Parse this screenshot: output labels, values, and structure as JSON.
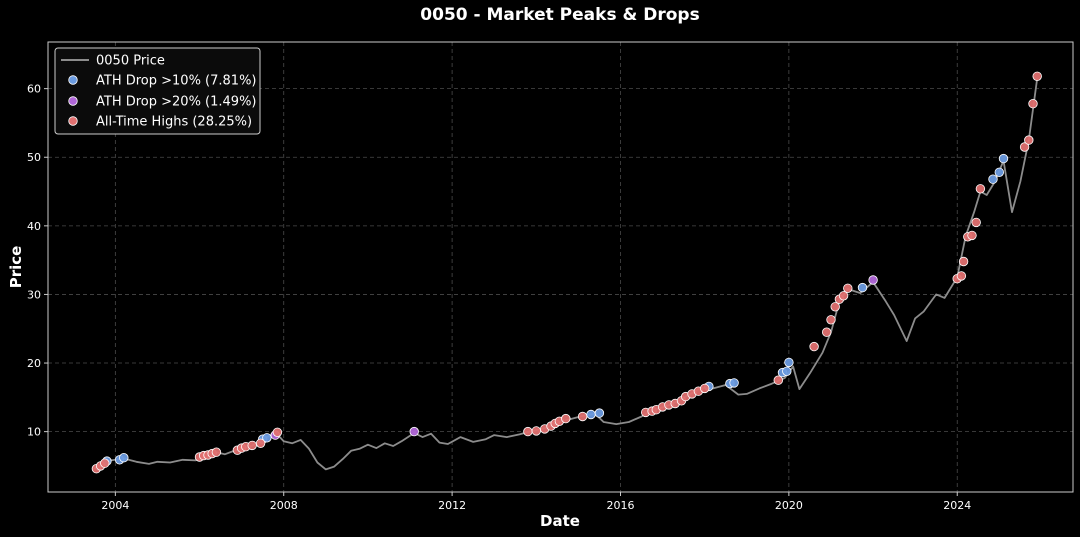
{
  "chart_data": {
    "type": "line",
    "title": "0050 - Market Peaks & Drops",
    "xlabel": "Date",
    "ylabel": "Price",
    "xlim": [
      2002.4,
      2026.75
    ],
    "ylim": [
      1.2,
      66.8
    ],
    "x_ticks": [
      2004,
      2008,
      2012,
      2016,
      2020,
      2024
    ],
    "x_tick_labels": [
      "2004",
      "2008",
      "2012",
      "2016",
      "2020",
      "2024"
    ],
    "y_ticks": [
      10,
      20,
      30,
      40,
      50,
      60
    ],
    "y_tick_labels": [
      "10",
      "20",
      "30",
      "40",
      "50",
      "60"
    ],
    "grid": true,
    "legend_position": "top-left",
    "colors": {
      "background": "#000000",
      "price_line": "#8c8c8c",
      "drop10": "#6b9be0",
      "drop20": "#b066d8",
      "ath": "#e07070",
      "marker_edge": "#ffffff",
      "grid": "#4a4a4a",
      "axes": "#cccccc"
    },
    "series": [
      {
        "name": "0050 Price",
        "kind": "line",
        "points": [
          [
            2003.5,
            4.6
          ],
          [
            2003.7,
            5.2
          ],
          [
            2003.9,
            5.8
          ],
          [
            2004.2,
            6.1
          ],
          [
            2004.5,
            5.6
          ],
          [
            2004.8,
            5.3
          ],
          [
            2005.0,
            5.6
          ],
          [
            2005.3,
            5.5
          ],
          [
            2005.6,
            5.9
          ],
          [
            2005.9,
            5.8
          ],
          [
            2006.1,
            6.3
          ],
          [
            2006.4,
            7.0
          ],
          [
            2006.6,
            6.7
          ],
          [
            2006.9,
            7.4
          ],
          [
            2007.2,
            7.8
          ],
          [
            2007.5,
            8.8
          ],
          [
            2007.8,
            9.9
          ],
          [
            2008.0,
            8.6
          ],
          [
            2008.2,
            8.3
          ],
          [
            2008.4,
            8.8
          ],
          [
            2008.6,
            7.5
          ],
          [
            2008.8,
            5.5
          ],
          [
            2009.0,
            4.5
          ],
          [
            2009.2,
            4.9
          ],
          [
            2009.4,
            6.0
          ],
          [
            2009.6,
            7.2
          ],
          [
            2009.8,
            7.5
          ],
          [
            2010.0,
            8.1
          ],
          [
            2010.2,
            7.6
          ],
          [
            2010.4,
            8.3
          ],
          [
            2010.6,
            7.9
          ],
          [
            2010.8,
            8.6
          ],
          [
            2011.1,
            9.8
          ],
          [
            2011.3,
            9.2
          ],
          [
            2011.5,
            9.7
          ],
          [
            2011.7,
            8.4
          ],
          [
            2011.9,
            8.2
          ],
          [
            2012.2,
            9.2
          ],
          [
            2012.5,
            8.5
          ],
          [
            2012.8,
            8.9
          ],
          [
            2013.0,
            9.5
          ],
          [
            2013.3,
            9.2
          ],
          [
            2013.6,
            9.6
          ],
          [
            2013.9,
            10.1
          ],
          [
            2014.2,
            10.5
          ],
          [
            2014.5,
            11.3
          ],
          [
            2014.8,
            11.8
          ],
          [
            2015.1,
            12.3
          ],
          [
            2015.4,
            12.6
          ],
          [
            2015.6,
            11.4
          ],
          [
            2015.9,
            11.1
          ],
          [
            2016.2,
            11.4
          ],
          [
            2016.5,
            12.2
          ],
          [
            2016.8,
            13.2
          ],
          [
            2017.1,
            13.7
          ],
          [
            2017.4,
            14.6
          ],
          [
            2017.7,
            15.6
          ],
          [
            2017.9,
            16.4
          ],
          [
            2018.2,
            16.3
          ],
          [
            2018.5,
            16.8
          ],
          [
            2018.8,
            15.4
          ],
          [
            2019.0,
            15.5
          ],
          [
            2019.3,
            16.3
          ],
          [
            2019.6,
            17.0
          ],
          [
            2019.9,
            17.8
          ],
          [
            2020.1,
            19.5
          ],
          [
            2020.25,
            16.2
          ],
          [
            2020.5,
            18.5
          ],
          [
            2020.8,
            21.5
          ],
          [
            2021.0,
            24.5
          ],
          [
            2021.2,
            29.0
          ],
          [
            2021.4,
            30.8
          ],
          [
            2021.7,
            30.2
          ],
          [
            2022.0,
            31.8
          ],
          [
            2022.3,
            29.0
          ],
          [
            2022.5,
            27.0
          ],
          [
            2022.8,
            23.2
          ],
          [
            2023.0,
            26.5
          ],
          [
            2023.2,
            27.5
          ],
          [
            2023.5,
            30.0
          ],
          [
            2023.7,
            29.5
          ],
          [
            2024.0,
            32.5
          ],
          [
            2024.2,
            38.5
          ],
          [
            2024.4,
            42.0
          ],
          [
            2024.55,
            45.0
          ],
          [
            2024.7,
            44.5
          ],
          [
            2024.9,
            46.5
          ],
          [
            2025.1,
            49.5
          ],
          [
            2025.3,
            42.0
          ],
          [
            2025.5,
            46.5
          ],
          [
            2025.7,
            52.5
          ],
          [
            2025.9,
            61.5
          ]
        ]
      },
      {
        "name": "ATH Drop >10% (7.81%)",
        "kind": "scatter",
        "color_key": "drop10",
        "points": [
          [
            2003.8,
            5.7
          ],
          [
            2004.1,
            5.9
          ],
          [
            2004.2,
            6.2
          ],
          [
            2007.5,
            8.9
          ],
          [
            2007.6,
            9.1
          ],
          [
            2015.3,
            12.5
          ],
          [
            2015.5,
            12.7
          ],
          [
            2018.1,
            16.6
          ],
          [
            2018.6,
            17.0
          ],
          [
            2018.7,
            17.1
          ],
          [
            2019.85,
            18.6
          ],
          [
            2019.95,
            18.8
          ],
          [
            2020.0,
            20.1
          ],
          [
            2021.75,
            31.0
          ],
          [
            2024.85,
            46.8
          ],
          [
            2025.0,
            47.8
          ],
          [
            2025.1,
            49.8
          ]
        ]
      },
      {
        "name": "ATH Drop >20% (1.49%)",
        "kind": "scatter",
        "color_key": "drop20",
        "points": [
          [
            2007.8,
            9.5
          ],
          [
            2011.1,
            10.0
          ],
          [
            2022.0,
            32.1
          ]
        ]
      },
      {
        "name": "All-Time Highs (28.25%)",
        "kind": "scatter",
        "color_key": "ath",
        "points": [
          [
            2003.55,
            4.6
          ],
          [
            2003.65,
            5.0
          ],
          [
            2003.75,
            5.4
          ],
          [
            2006.0,
            6.3
          ],
          [
            2006.1,
            6.5
          ],
          [
            2006.2,
            6.6
          ],
          [
            2006.3,
            6.8
          ],
          [
            2006.4,
            7.0
          ],
          [
            2006.9,
            7.3
          ],
          [
            2007.0,
            7.6
          ],
          [
            2007.1,
            7.8
          ],
          [
            2007.25,
            8.0
          ],
          [
            2007.45,
            8.3
          ],
          [
            2007.85,
            9.9
          ],
          [
            2013.8,
            10.0
          ],
          [
            2014.0,
            10.1
          ],
          [
            2014.2,
            10.4
          ],
          [
            2014.35,
            10.8
          ],
          [
            2014.45,
            11.2
          ],
          [
            2014.55,
            11.5
          ],
          [
            2014.7,
            11.9
          ],
          [
            2015.1,
            12.2
          ],
          [
            2016.6,
            12.8
          ],
          [
            2016.75,
            13.0
          ],
          [
            2016.85,
            13.2
          ],
          [
            2017.0,
            13.6
          ],
          [
            2017.15,
            13.9
          ],
          [
            2017.3,
            14.1
          ],
          [
            2017.45,
            14.5
          ],
          [
            2017.55,
            15.1
          ],
          [
            2017.7,
            15.5
          ],
          [
            2017.85,
            15.9
          ],
          [
            2018.0,
            16.3
          ],
          [
            2019.75,
            17.5
          ],
          [
            2020.6,
            22.4
          ],
          [
            2020.9,
            24.5
          ],
          [
            2021.0,
            26.3
          ],
          [
            2021.1,
            28.2
          ],
          [
            2021.2,
            29.3
          ],
          [
            2021.3,
            29.8
          ],
          [
            2021.4,
            30.9
          ],
          [
            2024.0,
            32.3
          ],
          [
            2024.1,
            32.7
          ],
          [
            2024.15,
            34.8
          ],
          [
            2024.25,
            38.4
          ],
          [
            2024.35,
            38.6
          ],
          [
            2024.45,
            40.5
          ],
          [
            2024.55,
            45.4
          ],
          [
            2025.6,
            51.5
          ],
          [
            2025.7,
            52.5
          ],
          [
            2025.8,
            57.8
          ],
          [
            2025.9,
            61.8
          ]
        ]
      }
    ]
  }
}
